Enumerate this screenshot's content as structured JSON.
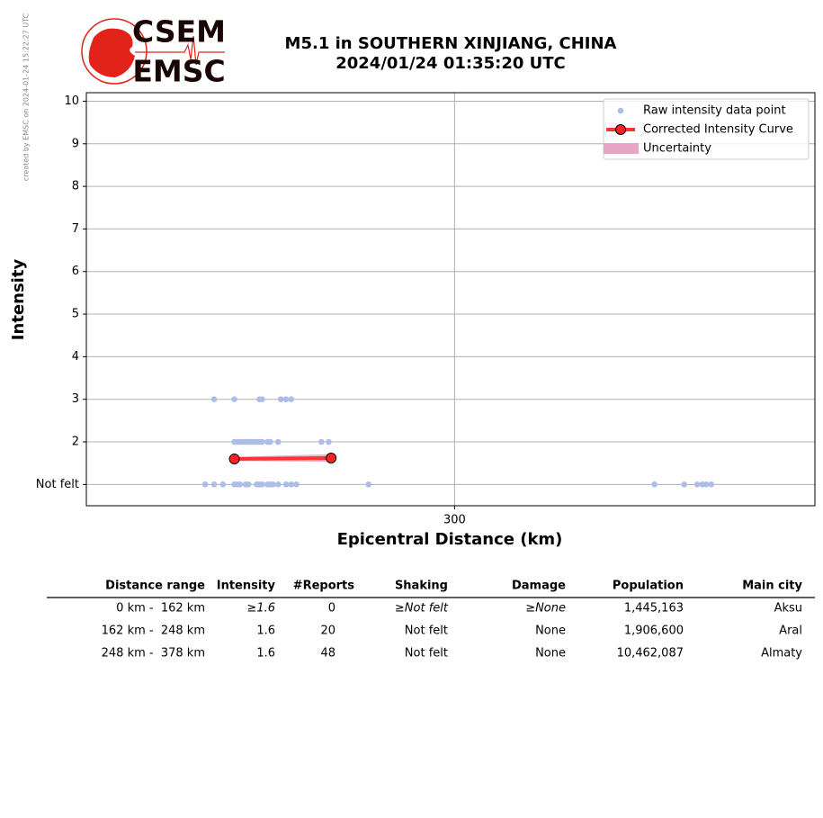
{
  "watermark": "created by EMSC on 2024-01-24 15:22:27 UTC",
  "logo": {
    "top": "CSEM",
    "bottom": "EMSC"
  },
  "chart_data": {
    "type": "scatter",
    "title": "M5.1 in SOUTHERN XINJIANG, CHINA",
    "subtitle": "2024/01/24 01:35:20 UTC",
    "x_label": "Epicentral Distance (km)",
    "y_label": "Intensity",
    "xscale": "log",
    "xlim": [
      160,
      555
    ],
    "ylim": [
      0.5,
      10.2
    ],
    "xticks": [
      300
    ],
    "yticks": [
      {
        "value": 1,
        "label": "Not felt"
      },
      2,
      3,
      4,
      5,
      6,
      7,
      8,
      9,
      10
    ],
    "grid": true,
    "legend_loc": "upper right",
    "series": [
      {
        "name": "Raw intensity data point",
        "type": "scatter",
        "color": "#aebde8",
        "x": [
          199,
          206,
          215,
          216,
          223,
          225,
          227,
          206,
          207,
          208,
          209,
          210,
          211,
          212,
          213,
          214,
          215,
          216,
          218,
          219,
          222,
          239,
          242,
          196,
          199,
          202,
          206,
          207,
          208,
          210,
          211,
          214,
          215,
          216,
          218,
          219,
          220,
          222,
          225,
          227,
          229,
          259,
          422,
          444,
          454,
          458,
          461,
          465
        ],
        "values": [
          3,
          3,
          3,
          3,
          3,
          3,
          3,
          2,
          2,
          2,
          2,
          2,
          2,
          2,
          2,
          2,
          2,
          2,
          2,
          2,
          2,
          2,
          2,
          1,
          1,
          1,
          1,
          1,
          1,
          1,
          1,
          1,
          1,
          1,
          1,
          1,
          1,
          1,
          1,
          1,
          1,
          1,
          1,
          1,
          1,
          1,
          1,
          1
        ]
      },
      {
        "name": "Corrected Intensity Curve",
        "type": "line",
        "color": "#ff3333",
        "marker_color": "#ff2222",
        "x": [
          206,
          243
        ],
        "values": [
          1.6,
          1.62
        ]
      },
      {
        "name": "Uncertainty",
        "type": "band",
        "color": "#e8a5c3",
        "x": [
          206,
          243
        ],
        "lower": [
          1.55,
          1.53
        ],
        "upper": [
          1.65,
          1.71
        ]
      }
    ]
  },
  "table": {
    "header": [
      "Distance range",
      "Intensity",
      "#Reports",
      "Shaking",
      "Damage",
      "Population",
      "Main city"
    ],
    "rows": [
      [
        "0 km -  162 km",
        "≥1.6",
        "0",
        "≥Not felt",
        "≥None",
        "1,445,163",
        "Aksu"
      ],
      [
        "162 km -  248 km",
        "1.6",
        "20",
        "Not felt",
        "None",
        "1,906,600",
        "Aral"
      ],
      [
        "248 km -  378 km",
        "1.6",
        "48",
        "Not felt",
        "None",
        "10,462,087",
        "Almaty"
      ]
    ]
  }
}
